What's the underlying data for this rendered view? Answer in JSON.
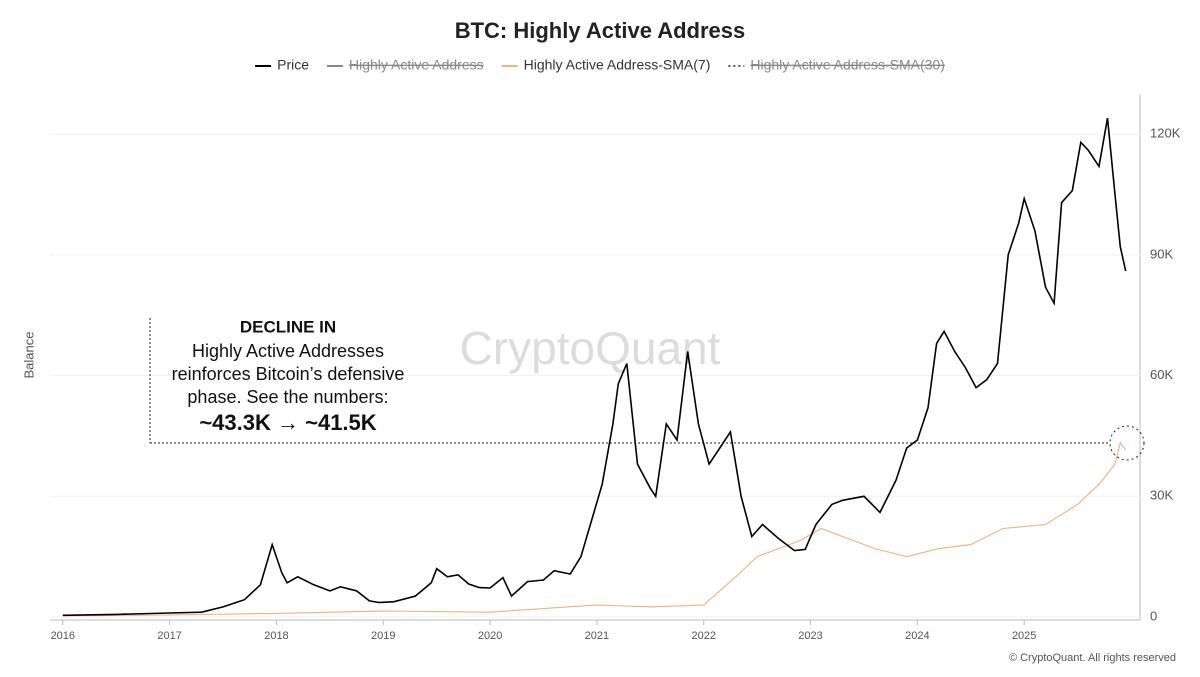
{
  "chart_data": {
    "type": "line",
    "title": "BTC: Highly Active Address",
    "y_label": "Balance",
    "watermark": "CryptoQuant",
    "footer": "© CryptoQuant. All rights reserved",
    "annotation": [
      "DECLINE IN",
      "Highly Active Addresses",
      "reinforces Bitcoin’s defensive",
      "phase. See the numbers:",
      "~43.3K → ~41.5K"
    ],
    "xlim": [
      2015.88,
      2026.0
    ],
    "xticks": [
      2016,
      2017,
      2018,
      2019,
      2020,
      2021,
      2022,
      2023,
      2024,
      2025
    ],
    "ylim": [
      0,
      130000
    ],
    "yticks": [
      0,
      {
        "value": 30000,
        "label": "30K"
      },
      {
        "value": 60000,
        "label": "60K"
      },
      {
        "value": 90000,
        "label": "90K"
      },
      {
        "value": 120000,
        "label": "120K"
      }
    ],
    "grid": true,
    "series": [
      {
        "name": "Price",
        "color": "#000000",
        "visible": true,
        "x": [
          2016.0,
          2016.5,
          2017.0,
          2017.3,
          2017.5,
          2017.7,
          2017.85,
          2017.96,
          2018.05,
          2018.1,
          2018.2,
          2018.35,
          2018.5,
          2018.6,
          2018.75,
          2018.87,
          2018.96,
          2019.1,
          2019.3,
          2019.45,
          2019.5,
          2019.6,
          2019.7,
          2019.8,
          2019.9,
          2020.0,
          2020.12,
          2020.2,
          2020.35,
          2020.5,
          2020.6,
          2020.75,
          2020.85,
          2020.95,
          2021.05,
          2021.15,
          2021.2,
          2021.28,
          2021.38,
          2021.5,
          2021.55,
          2021.65,
          2021.75,
          2021.85,
          2021.95,
          2022.05,
          2022.15,
          2022.25,
          2022.35,
          2022.45,
          2022.55,
          2022.7,
          2022.85,
          2022.95,
          2023.05,
          2023.2,
          2023.3,
          2023.5,
          2023.65,
          2023.8,
          2023.9,
          2024.0,
          2024.1,
          2024.18,
          2024.25,
          2024.35,
          2024.45,
          2024.55,
          2024.65,
          2024.75,
          2024.85,
          2024.95,
          2025.0,
          2025.1,
          2025.2,
          2025.28,
          2025.35,
          2025.45,
          2025.53,
          2025.6,
          2025.7,
          2025.78,
          2025.85,
          2025.9,
          2025.95
        ],
        "values": [
          430,
          650,
          1000,
          1200,
          2500,
          4300,
          8000,
          18000,
          11000,
          8500,
          10000,
          8000,
          6500,
          7500,
          6500,
          4000,
          3600,
          3800,
          5200,
          8500,
          12000,
          10000,
          10500,
          8200,
          7300,
          7200,
          9800,
          5200,
          8800,
          9200,
          11500,
          10700,
          15000,
          24000,
          33000,
          48000,
          58000,
          63000,
          38000,
          32000,
          30000,
          48000,
          44000,
          66000,
          48000,
          38000,
          42000,
          46000,
          30000,
          20000,
          23000,
          19500,
          16500,
          16800,
          23000,
          28000,
          29000,
          30000,
          26000,
          34000,
          42000,
          44000,
          52000,
          68000,
          71000,
          66000,
          62000,
          57000,
          59000,
          63000,
          90000,
          98000,
          104000,
          96000,
          82000,
          78000,
          103000,
          106000,
          118000,
          116000,
          112000,
          124000,
          105000,
          92000,
          86000
        ]
      },
      {
        "name": "Highly Active Address",
        "color": "#888888",
        "visible": false
      },
      {
        "name": "Highly Active Address-SMA(7)",
        "color": "#f2b27a",
        "visible": true,
        "x": [
          2016.0,
          2017.0,
          2018.0,
          2019.0,
          2020.0,
          2021.0,
          2021.5,
          2022.0,
          2022.3,
          2022.5,
          2022.9,
          2023.1,
          2023.3,
          2023.6,
          2023.9,
          2024.2,
          2024.5,
          2024.8,
          2025.2,
          2025.5,
          2025.7,
          2025.85,
          2025.9,
          2025.95
        ],
        "values": [
          300,
          500,
          900,
          1500,
          1200,
          3000,
          2500,
          3000,
          10000,
          15000,
          19000,
          22000,
          20000,
          17000,
          15000,
          17000,
          18000,
          22000,
          23000,
          28000,
          33000,
          38000,
          43300,
          41500
        ]
      },
      {
        "name": "Highly Active Address-SMA(30)",
        "color": "#555555",
        "visible": false,
        "dash": "2 3"
      }
    ]
  }
}
